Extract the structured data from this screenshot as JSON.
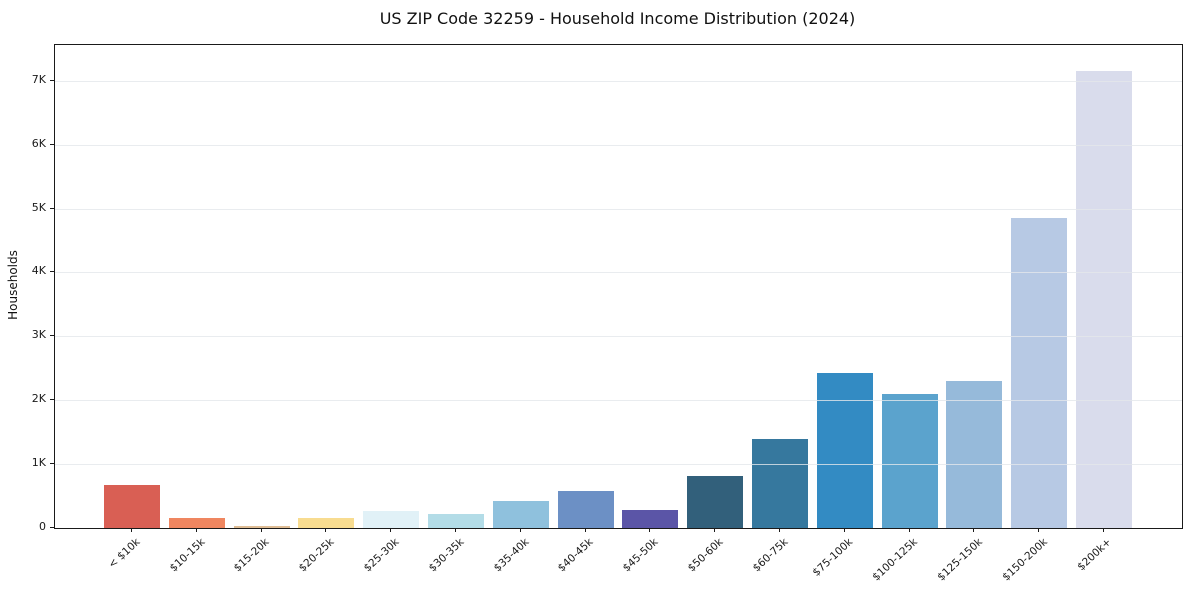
{
  "chart_data": {
    "type": "bar",
    "title": "US ZIP Code 32259 - Household Income Distribution (2024)",
    "xlabel": "",
    "ylabel": "Households",
    "categories": [
      "< $10k",
      "$10-15k",
      "$15-20k",
      "$20-25k",
      "$25-30k",
      "$30-35k",
      "$35-40k",
      "$40-45k",
      "$45-50k",
      "$50-60k",
      "$60-75k",
      "$75-100k",
      "$100-125k",
      "$125-150k",
      "$150-200k",
      "$200k+"
    ],
    "values": [
      680,
      160,
      35,
      150,
      270,
      215,
      420,
      575,
      280,
      810,
      1400,
      2420,
      2100,
      2300,
      4850,
      7150
    ],
    "bar_colors": [
      "#d95f54",
      "#ef8660",
      "#dfbd95",
      "#f8dc90",
      "#e1f1f7",
      "#b3dce7",
      "#8fc1dd",
      "#6c90c5",
      "#5b55a7",
      "#32607b",
      "#36789e",
      "#338bc3",
      "#5ba3cd",
      "#96bada",
      "#b7c9e4",
      "#d9dcec"
    ],
    "ytick_values": [
      0,
      1000,
      2000,
      3000,
      4000,
      5000,
      6000,
      7000
    ],
    "ytick_labels": [
      "0",
      "1K",
      "2K",
      "3K",
      "4K",
      "5K",
      "6K",
      "7K"
    ],
    "ylim": [
      0,
      7560
    ],
    "grid": "horizontal",
    "gridline_color": "#e7e9ed",
    "legend": "none",
    "xtick_rotation": 45
  }
}
